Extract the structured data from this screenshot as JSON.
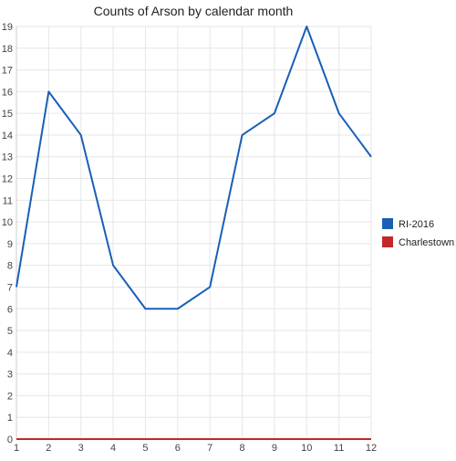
{
  "chart_data": {
    "type": "line",
    "title": "Counts of Arson by calendar month",
    "xlabel": "",
    "ylabel": "",
    "categories": [
      1,
      2,
      3,
      4,
      5,
      6,
      7,
      8,
      9,
      10,
      11,
      12
    ],
    "ylim": [
      0,
      19
    ],
    "yticks": [
      0,
      1,
      2,
      3,
      4,
      5,
      6,
      7,
      8,
      9,
      10,
      11,
      12,
      13,
      14,
      15,
      16,
      17,
      18,
      19
    ],
    "grid": true,
    "legend_position": "right",
    "series": [
      {
        "name": "RI-2016",
        "color": "#1a5fb4",
        "values": [
          7,
          16,
          14,
          8,
          6,
          6,
          7,
          14,
          15,
          19,
          15,
          13
        ]
      },
      {
        "name": "Charlestown",
        "color": "#c0282a",
        "values": [
          0,
          0,
          0,
          0,
          0,
          0,
          0,
          0,
          0,
          0,
          0,
          0
        ]
      }
    ]
  }
}
